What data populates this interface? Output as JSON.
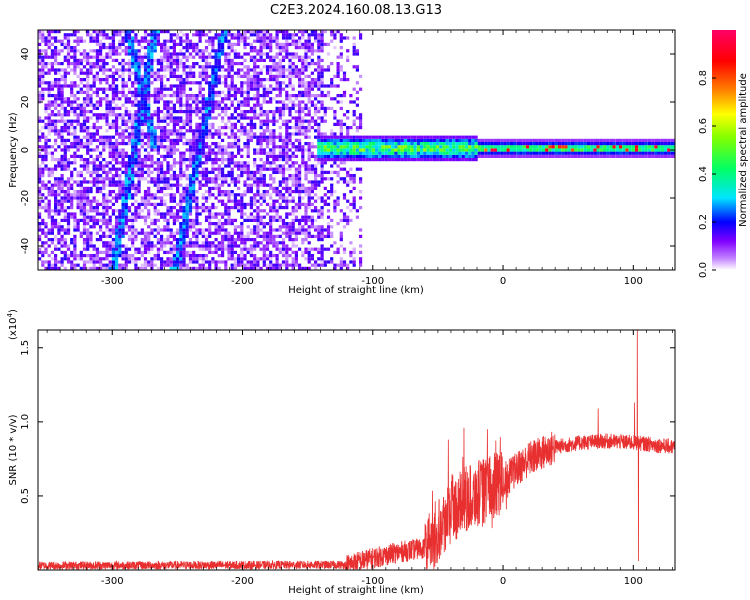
{
  "title": "C2E3.2024.160.08.13.G13",
  "chart_data": [
    {
      "type": "heatmap",
      "xlabel": "Height of straight line (km)",
      "ylabel": "Frequency (Hz)",
      "xlim": [
        -357,
        132
      ],
      "ylim": [
        -50,
        50
      ],
      "x_ticks": [
        -300,
        -200,
        -100,
        0,
        100
      ],
      "y_ticks": [
        -40,
        -20,
        0,
        20,
        40
      ],
      "colorbar": {
        "label": "Normalized spectral amplitude",
        "range": [
          0,
          1
        ],
        "ticks": [
          0.0,
          0.2,
          0.4,
          0.6,
          0.8
        ],
        "colors": [
          "#ffffff",
          "#c080ff",
          "#8000ff",
          "#0000ff",
          "#00e5ff",
          "#00ff66",
          "#80ff00",
          "#ffff00",
          "#ff8000",
          "#ff0000",
          "#ff0066"
        ]
      },
      "regions": [
        {
          "name": "noise",
          "x_range": [
            -357,
            -110
          ],
          "freq_range": [
            -50,
            50
          ],
          "amplitude": [
            0.0,
            0.15
          ]
        },
        {
          "name": "dispersed-signal",
          "x_range": [
            -145,
            -20
          ],
          "freq_center": 0,
          "freq_halfwidth": 5,
          "amplitude": [
            0.2,
            0.6
          ]
        },
        {
          "name": "steady-signal",
          "x_range": [
            -20,
            132
          ],
          "freq_center": 0,
          "freq_halfwidth": 2.5,
          "amplitude": [
            0.4,
            0.95
          ]
        }
      ],
      "streaks": [
        {
          "x0": -300,
          "f0": -50,
          "x1": -268,
          "f1": 50
        },
        {
          "x0": -253,
          "f0": -50,
          "x1": -215,
          "f1": 50
        },
        {
          "x0": -290,
          "f0": 50,
          "x1": -268,
          "f1": 0
        }
      ]
    },
    {
      "type": "line",
      "xlabel": "Height of straight line (km)",
      "ylabel": "SNR (10 * v/v)",
      "y_multiplier": "(x10",
      "y_multiplier_exp": "4",
      "y_multiplier_close": ")",
      "xlim": [
        -357,
        132
      ],
      "ylim": [
        0,
        16200
      ],
      "x_ticks": [
        -300,
        -200,
        -100,
        0,
        100
      ],
      "y_ticks": [
        {
          "value": 5000,
          "label": "0.5"
        },
        {
          "value": 10000,
          "label": "1.0"
        },
        {
          "value": 15000,
          "label": "1.5"
        }
      ],
      "line_color": "#e83030",
      "profile": [
        {
          "x": -357,
          "y": 300
        },
        {
          "x": -120,
          "y": 350
        },
        {
          "x": -100,
          "y": 800
        },
        {
          "x": -80,
          "y": 1200
        },
        {
          "x": -60,
          "y": 1500
        },
        {
          "x": -40,
          "y": 4000
        },
        {
          "x": -25,
          "y": 5000
        },
        {
          "x": -10,
          "y": 5500
        },
        {
          "x": 0,
          "y": 6000
        },
        {
          "x": 20,
          "y": 7500
        },
        {
          "x": 40,
          "y": 8300
        },
        {
          "x": 60,
          "y": 8600
        },
        {
          "x": 80,
          "y": 8700
        },
        {
          "x": 100,
          "y": 8600
        },
        {
          "x": 132,
          "y": 8300
        }
      ],
      "spikes": [
        {
          "x": -42,
          "y": 8800
        },
        {
          "x": -30,
          "y": 9600
        },
        {
          "x": -12,
          "y": 9500
        },
        {
          "x": 73,
          "y": 10900
        },
        {
          "x": 101,
          "y": 11300
        },
        {
          "x": 103,
          "y": 16200
        },
        {
          "x": 104,
          "y": 600
        }
      ]
    }
  ]
}
